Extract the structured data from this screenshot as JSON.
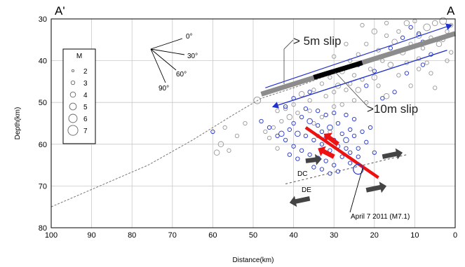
{
  "chart_data": {
    "type": "scatter",
    "xlabel": "Distance(km)",
    "ylabel": "Depth(km)",
    "xlim": [
      100,
      0
    ],
    "ylim": [
      80,
      30
    ],
    "xticks": [
      100,
      90,
      80,
      70,
      60,
      50,
      40,
      30,
      20,
      10,
      0
    ],
    "yticks": [
      30,
      40,
      50,
      60,
      70,
      80
    ],
    "grid": true,
    "end_labels": {
      "left": "A'",
      "right": "A"
    },
    "legend": {
      "title": "M",
      "placement": "upper-left",
      "magnitudes": [
        2,
        3,
        4,
        5,
        6,
        7
      ]
    },
    "dip_guide": {
      "labels": [
        "0°",
        "30°",
        "60°",
        "90°"
      ]
    },
    "annotations": {
      "slip_5m": "> 5m slip",
      "slip_10m": ">10m slip",
      "dc": "DC",
      "de": "DE",
      "mainshock": "April 7 2011 (M7.1)"
    },
    "plate_interface": [
      [
        100,
        75
      ],
      [
        88,
        70
      ],
      [
        76,
        65
      ],
      [
        65,
        59
      ],
      [
        55,
        53
      ],
      [
        48,
        49
      ],
      [
        40,
        46.5
      ],
      [
        30,
        43
      ],
      [
        20,
        39.5
      ],
      [
        10,
        36
      ],
      [
        0,
        33
      ]
    ],
    "slip_band": {
      "from": [
        48,
        48
      ],
      "to": [
        0,
        33.5
      ]
    },
    "slip_10m_segment": {
      "from": [
        35,
        44
      ],
      "to": [
        23,
        40.5
      ]
    },
    "blue_upper_line": {
      "from": [
        47,
        46.5
      ],
      "to": [
        1,
        31.5
      ]
    },
    "blue_lower_line": {
      "from": [
        45,
        51
      ],
      "to": [
        2,
        37.5
      ]
    },
    "mainshock_fault": {
      "from": [
        37,
        56
      ],
      "to": [
        19,
        68
      ]
    },
    "dc_de_boundary": {
      "from": [
        42,
        69.5
      ],
      "to": [
        12,
        62.5
      ]
    },
    "mainshock_location": [
      24,
      66
    ],
    "red_arrows": [
      {
        "from": [
          29,
          60
        ],
        "to": [
          32.5,
          57.5
        ]
      },
      {
        "from": [
          30,
          63
        ],
        "to": [
          34,
          61
        ]
      }
    ],
    "gray_arrows": [
      {
        "from": [
          37,
          64
        ],
        "to": [
          33,
          63.5
        ]
      },
      {
        "from": [
          18,
          63
        ],
        "to": [
          13,
          62
        ]
      },
      {
        "from": [
          22,
          71
        ],
        "to": [
          17,
          70
        ]
      },
      {
        "from": [
          36,
          73
        ],
        "to": [
          41,
          74
        ]
      }
    ],
    "series": [
      {
        "name": "",
        "color": "#999999",
        "points": [
          [
            12,
            31,
            4
          ],
          [
            10,
            30.5,
            3
          ],
          [
            7,
            32,
            5
          ],
          [
            5,
            31,
            4
          ],
          [
            3,
            30.5,
            5
          ],
          [
            1,
            31.5,
            3
          ],
          [
            14,
            33,
            3
          ],
          [
            9,
            34,
            4
          ],
          [
            6,
            34.5,
            3
          ],
          [
            2,
            33,
            3
          ],
          [
            20,
            33,
            4
          ],
          [
            17,
            34,
            3
          ],
          [
            15,
            35.5,
            4
          ],
          [
            11,
            36,
            3
          ],
          [
            8,
            37,
            3
          ],
          [
            4,
            36,
            4
          ],
          [
            1,
            38,
            3
          ],
          [
            22,
            36,
            3
          ],
          [
            19,
            37.5,
            3
          ],
          [
            13,
            38,
            4
          ],
          [
            24,
            38.5,
            3
          ],
          [
            18,
            40,
            3
          ],
          [
            16,
            41,
            4
          ],
          [
            12,
            40.5,
            3
          ],
          [
            9,
            39.5,
            3
          ],
          [
            26,
            40,
            3
          ],
          [
            21,
            42,
            3
          ],
          [
            28,
            42.5,
            4
          ],
          [
            25,
            43.5,
            3
          ],
          [
            23,
            44.5,
            3
          ],
          [
            31,
            44,
            3
          ],
          [
            33,
            45.5,
            3
          ],
          [
            29,
            46,
            4
          ],
          [
            27,
            47,
            3
          ],
          [
            24,
            47,
            4
          ],
          [
            20,
            44,
            4
          ],
          [
            19,
            46,
            3
          ],
          [
            17,
            48.5,
            4
          ],
          [
            35,
            47,
            3
          ],
          [
            38,
            48,
            4
          ],
          [
            36,
            49.5,
            3
          ],
          [
            32,
            48.5,
            3
          ],
          [
            30,
            47.5,
            3
          ],
          [
            26,
            45.5,
            3
          ],
          [
            40,
            50.5,
            3
          ],
          [
            42,
            51.5,
            3
          ],
          [
            44,
            52,
            3
          ],
          [
            41,
            53.5,
            4
          ],
          [
            39,
            52.5,
            3
          ],
          [
            43,
            54.5,
            3
          ],
          [
            45,
            56,
            3
          ],
          [
            47,
            57,
            3
          ],
          [
            52,
            55,
            3
          ],
          [
            54,
            58,
            3
          ],
          [
            57,
            56,
            3
          ],
          [
            58,
            60,
            4
          ],
          [
            56,
            61.5,
            3
          ],
          [
            59,
            62,
            4
          ],
          [
            49,
            49.5,
            5
          ],
          [
            46,
            58.5,
            3
          ],
          [
            44,
            61,
            3
          ],
          [
            35,
            55,
            3
          ],
          [
            33,
            53.5,
            3
          ],
          [
            36,
            52,
            3
          ],
          [
            30,
            51,
            3
          ],
          [
            28,
            50.5,
            3
          ],
          [
            22,
            50,
            3
          ],
          [
            25,
            49.5,
            3
          ],
          [
            31,
            57,
            3
          ],
          [
            34,
            58,
            3
          ],
          [
            9,
            42,
            3
          ],
          [
            6,
            43,
            3
          ],
          [
            14,
            43.5,
            3
          ],
          [
            3,
            35,
            3
          ],
          [
            17,
            31,
            3
          ],
          [
            23,
            31.5,
            3
          ],
          [
            27,
            36,
            3
          ],
          [
            30,
            39,
            3
          ],
          [
            2,
            40,
            3
          ],
          [
            7,
            40.5,
            3
          ],
          [
            11,
            46,
            3
          ],
          [
            5,
            46.5,
            3
          ]
        ]
      },
      {
        "name": "",
        "color": "#2233cc",
        "points": [
          [
            11,
            32,
            3
          ],
          [
            9,
            33.5,
            3
          ],
          [
            13,
            34.5,
            3
          ],
          [
            8,
            35.5,
            3
          ],
          [
            16,
            37,
            3
          ],
          [
            6,
            38.5,
            3
          ],
          [
            40,
            55,
            3
          ],
          [
            38,
            53.5,
            3
          ],
          [
            36,
            54.5,
            4
          ],
          [
            34,
            55.5,
            3
          ],
          [
            33,
            57,
            3
          ],
          [
            31,
            56,
            4
          ],
          [
            29,
            55,
            3
          ],
          [
            28,
            57.5,
            3
          ],
          [
            26,
            56.5,
            3
          ],
          [
            25,
            58,
            3
          ],
          [
            27,
            59,
            4
          ],
          [
            29,
            60.5,
            3
          ],
          [
            31,
            61.5,
            3
          ],
          [
            33,
            60,
            3
          ],
          [
            35,
            59,
            3
          ],
          [
            37,
            58,
            3
          ],
          [
            39,
            57.5,
            4
          ],
          [
            41,
            56.5,
            3
          ],
          [
            43,
            57.5,
            4
          ],
          [
            42,
            59,
            3
          ],
          [
            40,
            60.5,
            3
          ],
          [
            38,
            61.5,
            3
          ],
          [
            36,
            62.5,
            3
          ],
          [
            34,
            63.5,
            4
          ],
          [
            32,
            64,
            3
          ],
          [
            30,
            65,
            3
          ],
          [
            28,
            63,
            3
          ],
          [
            26,
            62,
            3
          ],
          [
            24,
            61,
            3
          ],
          [
            22,
            59.5,
            3
          ],
          [
            23,
            57,
            3
          ],
          [
            21,
            56,
            3
          ],
          [
            25,
            54,
            3
          ],
          [
            27,
            53,
            3
          ],
          [
            30,
            52.5,
            3
          ],
          [
            32,
            53,
            3
          ],
          [
            34,
            52,
            3
          ],
          [
            37,
            51.5,
            3
          ],
          [
            44,
            58,
            3
          ],
          [
            46,
            56,
            3
          ],
          [
            48,
            54.5,
            3
          ],
          [
            60,
            57,
            3
          ],
          [
            33,
            66,
            3
          ],
          [
            31,
            67,
            3
          ],
          [
            29,
            66.5,
            3
          ],
          [
            35,
            65.5,
            3
          ],
          [
            39,
            63.5,
            3
          ],
          [
            41,
            62.5,
            3
          ],
          [
            26,
            64.5,
            3
          ],
          [
            24,
            63,
            3
          ],
          [
            20,
            62,
            3
          ],
          [
            27,
            61,
            3
          ],
          [
            30,
            59,
            3
          ],
          [
            32,
            58.5,
            3
          ],
          [
            22,
            46,
            3
          ],
          [
            18,
            49,
            3
          ],
          [
            15,
            47.5,
            3
          ],
          [
            12,
            43,
            3
          ],
          [
            8,
            41,
            3
          ],
          [
            20,
            42.5,
            3
          ],
          [
            24,
            41,
            3
          ],
          [
            42,
            51,
            3
          ],
          [
            40,
            49,
            3
          ],
          [
            36,
            47.5,
            3
          ]
        ]
      }
    ]
  }
}
